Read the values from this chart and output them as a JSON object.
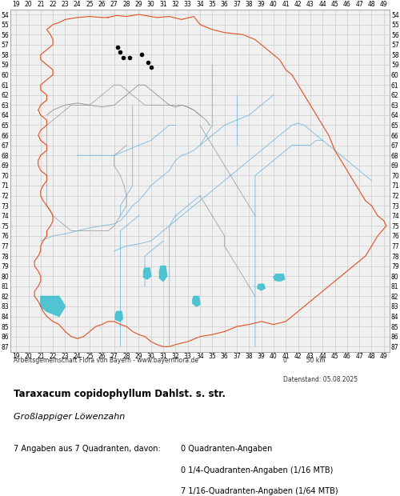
{
  "title_bold": "Taraxacum copidophyllum Dahlst. s. str.",
  "title_italic": "Großlappiger Löwenzahn",
  "footer_left": "Arbeitsgemeinschaft Flora von Bayern - www.bayernflora.de",
  "footer_right": "0          50 km",
  "date_label": "Datenstand: 05.08.2025",
  "stats_left": "7 Angaben aus 7 Quadranten, davon:",
  "stats_right": [
    "0 Quadranten-Angaben",
    "0 1/4-Quadranten-Angaben (1/16 MTB)",
    "7 1/16-Quadranten-Angaben (1/64 MTB)"
  ],
  "x_ticks": [
    19,
    20,
    21,
    22,
    23,
    24,
    25,
    26,
    27,
    28,
    29,
    30,
    31,
    32,
    33,
    34,
    35,
    36,
    37,
    38,
    39,
    40,
    41,
    42,
    43,
    44,
    45,
    46,
    47,
    48,
    49
  ],
  "y_ticks": [
    54,
    55,
    56,
    57,
    58,
    59,
    60,
    61,
    62,
    63,
    64,
    65,
    66,
    67,
    68,
    69,
    70,
    71,
    72,
    73,
    74,
    75,
    76,
    77,
    78,
    79,
    80,
    81,
    82,
    83,
    84,
    85,
    86,
    87
  ],
  "x_min": 18.5,
  "x_max": 49.5,
  "y_min": 53.5,
  "y_max": 87.5,
  "grid_color": "#cccccc",
  "background_color": "#ffffff",
  "occurrence_dots": [
    [
      27.25,
      57.25
    ],
    [
      27.5,
      57.75
    ],
    [
      27.75,
      58.25
    ],
    [
      28.25,
      58.25
    ],
    [
      29.25,
      58.0
    ],
    [
      29.75,
      58.75
    ],
    [
      30.0,
      59.25
    ]
  ],
  "dot_color": "#000000",
  "dot_size": 4,
  "border_outer_color": "#e05020",
  "border_inner_color": "#808080",
  "river_color": "#60b0e0",
  "lake_color": "#40c0d0",
  "figsize": [
    5.0,
    6.2
  ],
  "dpi": 100
}
